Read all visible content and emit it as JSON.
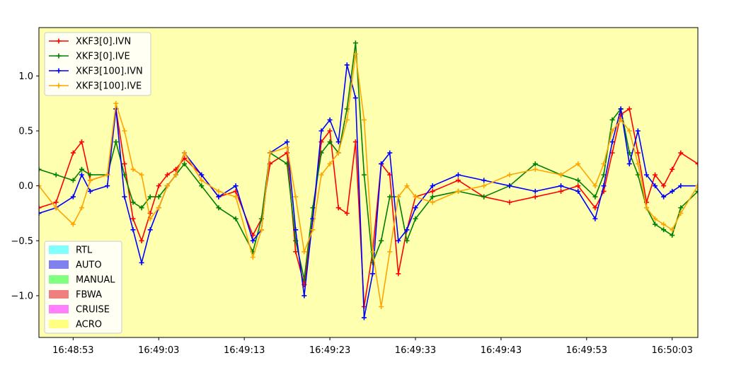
{
  "chart_data": {
    "type": "line",
    "title": "",
    "xlabel": "",
    "ylabel": "",
    "x_unit": "time (HH:MM:SS)",
    "xlim": [
      "16:48:49",
      "16:50:06"
    ],
    "ylim": [
      -1.38,
      1.44
    ],
    "x_ticks": [
      "16:48:53",
      "16:49:03",
      "16:49:13",
      "16:49:23",
      "16:49:33",
      "16:49:43",
      "16:49:53",
      "16:50:03"
    ],
    "y_ticks": [
      -1.0,
      -0.5,
      0.0,
      0.5,
      1.0
    ],
    "y_tick_labels": [
      "−1.0",
      "−0.5",
      "0.0",
      "0.5",
      "1.0"
    ],
    "background_color": "#ffffb0",
    "grid": false,
    "series_legend_position": "top-left",
    "mode_legend_position": "bottom-left",
    "series": [
      {
        "name": "XKF3[0].IVN",
        "color": "#ff0000",
        "marker": "+",
        "x": [
          "16:48:49",
          "16:48:51",
          "16:48:53",
          "16:48:54",
          "16:48:55",
          "16:48:57",
          "16:48:58",
          "16:48:59",
          "16:49:00",
          "16:49:01",
          "16:49:02",
          "16:49:03",
          "16:49:04",
          "16:49:05",
          "16:49:06",
          "16:49:08",
          "16:49:10",
          "16:49:12",
          "16:49:14",
          "16:49:15",
          "16:49:16",
          "16:49:18",
          "16:49:19",
          "16:49:20",
          "16:49:21",
          "16:49:22",
          "16:49:23",
          "16:49:24",
          "16:49:25",
          "16:49:26",
          "16:49:27",
          "16:49:28",
          "16:49:29",
          "16:49:30",
          "16:49:31",
          "16:49:32",
          "16:49:33",
          "16:49:35",
          "16:49:38",
          "16:49:41",
          "16:49:44",
          "16:49:47",
          "16:49:50",
          "16:49:52",
          "16:49:54",
          "16:49:55",
          "16:49:56",
          "16:49:57",
          "16:49:58",
          "16:49:59",
          "16:50:00",
          "16:50:01",
          "16:50:02",
          "16:50:03",
          "16:50:04",
          "16:50:06"
        ],
        "y": [
          -0.2,
          -0.15,
          0.3,
          0.4,
          0.05,
          0.1,
          0.7,
          0.2,
          -0.3,
          -0.5,
          -0.25,
          0.0,
          0.1,
          0.15,
          0.25,
          0.1,
          -0.1,
          -0.05,
          -0.45,
          -0.3,
          0.2,
          0.3,
          -0.6,
          -0.9,
          -0.3,
          0.4,
          0.5,
          -0.2,
          -0.25,
          0.4,
          -1.1,
          -0.6,
          0.2,
          0.1,
          -0.8,
          -0.4,
          -0.1,
          -0.05,
          0.05,
          -0.1,
          -0.15,
          -0.1,
          -0.05,
          0.0,
          -0.2,
          -0.05,
          0.3,
          0.65,
          0.7,
          0.3,
          -0.15,
          0.1,
          0.0,
          0.15,
          0.3,
          0.2
        ]
      },
      {
        "name": "XKF3[0].IVE",
        "color": "#008000",
        "marker": "+",
        "x": [
          "16:48:49",
          "16:48:51",
          "16:48:53",
          "16:48:54",
          "16:48:55",
          "16:48:57",
          "16:48:58",
          "16:48:59",
          "16:49:00",
          "16:49:01",
          "16:49:02",
          "16:49:03",
          "16:49:04",
          "16:49:05",
          "16:49:06",
          "16:49:08",
          "16:49:10",
          "16:49:12",
          "16:49:14",
          "16:49:15",
          "16:49:16",
          "16:49:18",
          "16:49:19",
          "16:49:20",
          "16:49:21",
          "16:49:22",
          "16:49:23",
          "16:49:24",
          "16:49:25",
          "16:49:26",
          "16:49:27",
          "16:49:28",
          "16:49:29",
          "16:49:30",
          "16:49:31",
          "16:49:32",
          "16:49:33",
          "16:49:35",
          "16:49:38",
          "16:49:41",
          "16:49:44",
          "16:49:47",
          "16:49:50",
          "16:49:52",
          "16:49:54",
          "16:49:55",
          "16:49:56",
          "16:49:57",
          "16:49:58",
          "16:49:59",
          "16:50:00",
          "16:50:01",
          "16:50:02",
          "16:50:03",
          "16:50:04",
          "16:50:06"
        ],
        "y": [
          0.15,
          0.1,
          0.05,
          0.15,
          0.1,
          0.1,
          0.4,
          0.1,
          -0.15,
          -0.2,
          -0.1,
          -0.1,
          0.0,
          0.1,
          0.2,
          0.0,
          -0.2,
          -0.3,
          -0.6,
          -0.3,
          0.3,
          0.2,
          -0.5,
          -0.85,
          -0.2,
          0.3,
          0.4,
          0.3,
          0.7,
          1.3,
          0.1,
          -0.7,
          -0.5,
          -0.1,
          -0.1,
          -0.5,
          -0.3,
          -0.1,
          -0.05,
          -0.1,
          0.0,
          0.2,
          0.1,
          0.05,
          -0.1,
          0.1,
          0.6,
          0.7,
          0.3,
          0.1,
          -0.2,
          -0.35,
          -0.4,
          -0.45,
          -0.2,
          -0.05
        ]
      },
      {
        "name": "XKF3[100].IVN",
        "color": "#0000ff",
        "marker": "+",
        "x": [
          "16:48:49",
          "16:48:51",
          "16:48:53",
          "16:48:54",
          "16:48:55",
          "16:48:57",
          "16:48:58",
          "16:48:59",
          "16:49:00",
          "16:49:01",
          "16:49:02",
          "16:49:03",
          "16:49:04",
          "16:49:05",
          "16:49:06",
          "16:49:08",
          "16:49:10",
          "16:49:12",
          "16:49:14",
          "16:49:15",
          "16:49:16",
          "16:49:18",
          "16:49:19",
          "16:49:20",
          "16:49:21",
          "16:49:22",
          "16:49:23",
          "16:49:24",
          "16:49:25",
          "16:49:26",
          "16:49:27",
          "16:49:28",
          "16:49:29",
          "16:49:30",
          "16:49:31",
          "16:49:32",
          "16:49:33",
          "16:49:35",
          "16:49:38",
          "16:49:41",
          "16:49:44",
          "16:49:47",
          "16:49:50",
          "16:49:52",
          "16:49:54",
          "16:49:55",
          "16:49:56",
          "16:49:57",
          "16:49:58",
          "16:49:59",
          "16:50:00",
          "16:50:01",
          "16:50:02",
          "16:50:03",
          "16:50:04",
          "16:50:06"
        ],
        "y": [
          -0.25,
          -0.2,
          -0.1,
          0.1,
          -0.05,
          0.0,
          0.7,
          -0.1,
          -0.4,
          -0.7,
          -0.4,
          -0.2,
          0.0,
          0.1,
          0.3,
          0.1,
          -0.1,
          0.0,
          -0.5,
          -0.4,
          0.3,
          0.4,
          -0.4,
          -1.0,
          -0.3,
          0.5,
          0.6,
          0.4,
          1.1,
          0.8,
          -1.2,
          -0.8,
          0.2,
          0.3,
          -0.5,
          -0.4,
          -0.2,
          0.0,
          0.1,
          0.05,
          0.0,
          -0.05,
          0.0,
          -0.05,
          -0.3,
          0.0,
          0.4,
          0.7,
          0.2,
          0.5,
          0.1,
          0.0,
          -0.1,
          -0.05,
          0.0,
          0.0
        ]
      },
      {
        "name": "XKF3[100].IVE",
        "color": "#ffa500",
        "marker": "+",
        "x": [
          "16:48:49",
          "16:48:51",
          "16:48:53",
          "16:48:54",
          "16:48:55",
          "16:48:57",
          "16:48:58",
          "16:48:59",
          "16:49:00",
          "16:49:01",
          "16:49:02",
          "16:49:03",
          "16:49:04",
          "16:49:05",
          "16:49:06",
          "16:49:08",
          "16:49:10",
          "16:49:12",
          "16:49:14",
          "16:49:15",
          "16:49:16",
          "16:49:18",
          "16:49:19",
          "16:49:20",
          "16:49:21",
          "16:49:22",
          "16:49:23",
          "16:49:24",
          "16:49:25",
          "16:49:26",
          "16:49:27",
          "16:49:28",
          "16:49:29",
          "16:49:30",
          "16:49:31",
          "16:49:32",
          "16:49:33",
          "16:49:35",
          "16:49:38",
          "16:49:41",
          "16:49:44",
          "16:49:47",
          "16:49:50",
          "16:49:52",
          "16:49:54",
          "16:49:55",
          "16:49:56",
          "16:49:57",
          "16:49:58",
          "16:49:59",
          "16:50:00",
          "16:50:01",
          "16:50:02",
          "16:50:03",
          "16:50:04",
          "16:50:06"
        ],
        "y": [
          0.0,
          -0.2,
          -0.35,
          -0.2,
          0.05,
          0.1,
          0.75,
          0.5,
          0.15,
          0.1,
          -0.3,
          -0.2,
          0.0,
          0.1,
          0.3,
          0.05,
          -0.05,
          -0.1,
          -0.65,
          -0.4,
          0.3,
          0.35,
          -0.1,
          -0.6,
          -0.4,
          0.1,
          0.2,
          0.3,
          0.6,
          1.2,
          0.6,
          -0.6,
          -1.1,
          -0.6,
          -0.1,
          0.0,
          -0.1,
          -0.15,
          -0.05,
          0.0,
          0.1,
          0.15,
          0.1,
          0.2,
          0.0,
          0.2,
          0.5,
          0.6,
          0.5,
          0.2,
          -0.2,
          -0.3,
          -0.35,
          -0.4,
          -0.25,
          0.0
        ]
      }
    ],
    "mode_legend": [
      {
        "label": "RTL",
        "color": "#80ffff"
      },
      {
        "label": "AUTO",
        "color": "#8080ee"
      },
      {
        "label": "MANUAL",
        "color": "#80ff80"
      },
      {
        "label": "FBWA",
        "color": "#f08080"
      },
      {
        "label": "CRUISE",
        "color": "#ff80ff"
      },
      {
        "label": "ACRO",
        "color": "#ffff80"
      }
    ]
  }
}
